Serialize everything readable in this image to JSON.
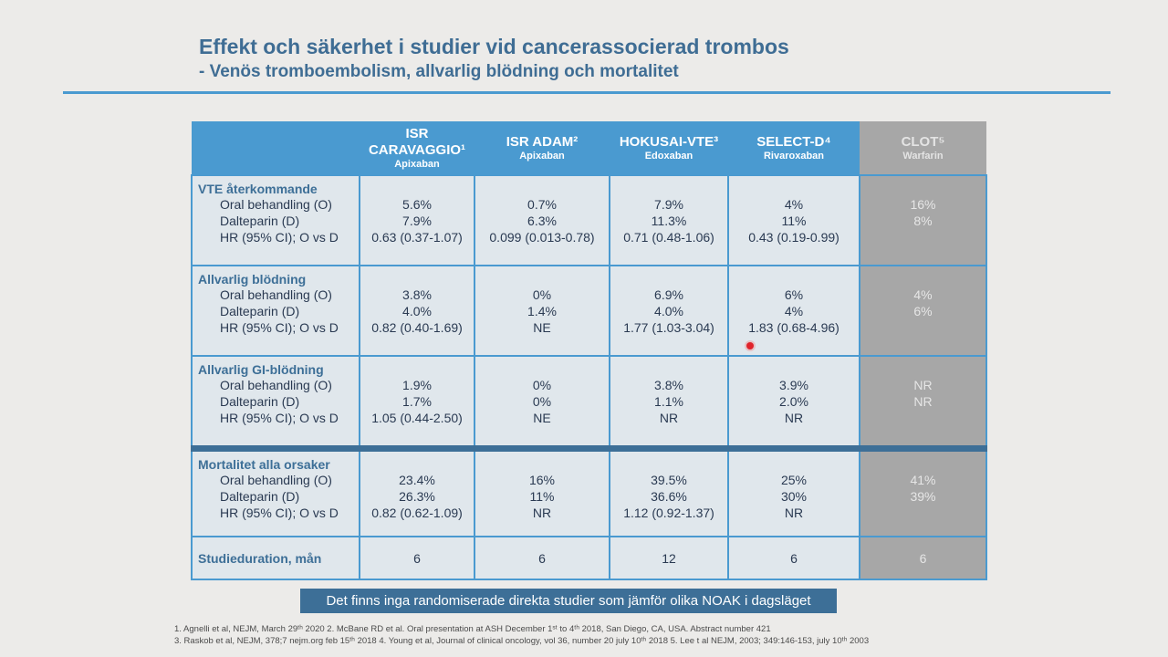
{
  "title": "Effekt och säkerhet i studier vid cancerassocierad trombos",
  "subtitle": "- Venös tromboembolism, allvarlig blödning och mortalitet",
  "studies": [
    {
      "name": "ISR CARAVAGGIO¹",
      "drug": "Apixaban"
    },
    {
      "name": "ISR ADAM²",
      "drug": "Apixaban"
    },
    {
      "name": "HOKUSAI-VTE³",
      "drug": "Edoxaban"
    },
    {
      "name": "SELECT-D⁴",
      "drug": "Rivaroxaban"
    },
    {
      "name": "CLOT⁵",
      "drug": "Warfarin"
    }
  ],
  "sections": [
    {
      "title": "VTE återkommande",
      "rows": [
        "Oral behandling (O)",
        "Dalteparin (D)",
        "HR (95% CI); O vs D"
      ],
      "values": [
        [
          "5.6%",
          "7.9%",
          "0.63 (0.37-1.07)"
        ],
        [
          "0.7%",
          "6.3%",
          "0.099 (0.013-0.78)"
        ],
        [
          "7.9%",
          "11.3%",
          "0.71 (0.48-1.06)"
        ],
        [
          "4%",
          "11%",
          "0.43 (0.19-0.99)"
        ],
        [
          "16%",
          "8%",
          ""
        ]
      ]
    },
    {
      "title": "Allvarlig blödning",
      "rows": [
        "Oral behandling (O)",
        "Dalteparin (D)",
        "HR (95% CI); O vs D"
      ],
      "values": [
        [
          "3.8%",
          "4.0%",
          "0.82 (0.40-1.69)"
        ],
        [
          "0%",
          "1.4%",
          "NE"
        ],
        [
          "6.9%",
          "4.0%",
          "1.77 (1.03-3.04)"
        ],
        [
          "6%",
          "4%",
          "1.83 (0.68-4.96)"
        ],
        [
          "4%",
          "6%",
          ""
        ]
      ]
    },
    {
      "title": "Allvarlig GI-blödning",
      "rows": [
        "Oral behandling (O)",
        "Dalteparin (D)",
        "HR (95% CI); O vs D"
      ],
      "values": [
        [
          "1.9%",
          "1.7%",
          "1.05 (0.44-2.50)"
        ],
        [
          "0%",
          "0%",
          "NE"
        ],
        [
          "3.8%",
          "1.1%",
          "NR"
        ],
        [
          "3.9%",
          "2.0%",
          "NR"
        ],
        [
          "NR",
          "NR",
          ""
        ]
      ]
    },
    {
      "title": "Mortalitet alla orsaker",
      "rows": [
        "Oral behandling (O)",
        "Dalteparin (D)",
        "HR (95% CI); O vs D"
      ],
      "values": [
        [
          "23.4%",
          "26.3%",
          "0.82 (0.62-1.09)"
        ],
        [
          "16%",
          "11%",
          "NR"
        ],
        [
          "39.5%",
          "36.6%",
          "1.12 (0.92-1.37)"
        ],
        [
          "25%",
          "30%",
          "NR"
        ],
        [
          "41%",
          "39%",
          ""
        ]
      ]
    }
  ],
  "duration": {
    "label": "Studieduration, mån",
    "values": [
      "6",
      "6",
      "12",
      "6",
      "6"
    ]
  },
  "banner": "Det finns inga randomiserade direkta studier som jämför olika NOAK i dagsläget",
  "footnotes": [
    "1. Agnelli et al, NEJM, March 29ᵗʰ 2020 2. McBane RD et al. Oral presentation at ASH December 1ˢᵗ to 4ᵗʰ 2018, San Diego, CA, USA. Abstract number 421",
    "3. Raskob et al, NEJM, 378;7 nejm.org feb 15ᵗʰ 2018 4. Young et al, Journal of clinical oncology, vol 36, number 20 july 10ᵗʰ 2018 5. Lee t al NEJM, 2003; 349:146-153, july 10ᵗʰ 2003"
  ],
  "colors": {
    "accent": "#4a9ad0",
    "dark_accent": "#3d6f97",
    "clot_column": "#a7a7a7",
    "section_bg": "#e0e7ec"
  }
}
